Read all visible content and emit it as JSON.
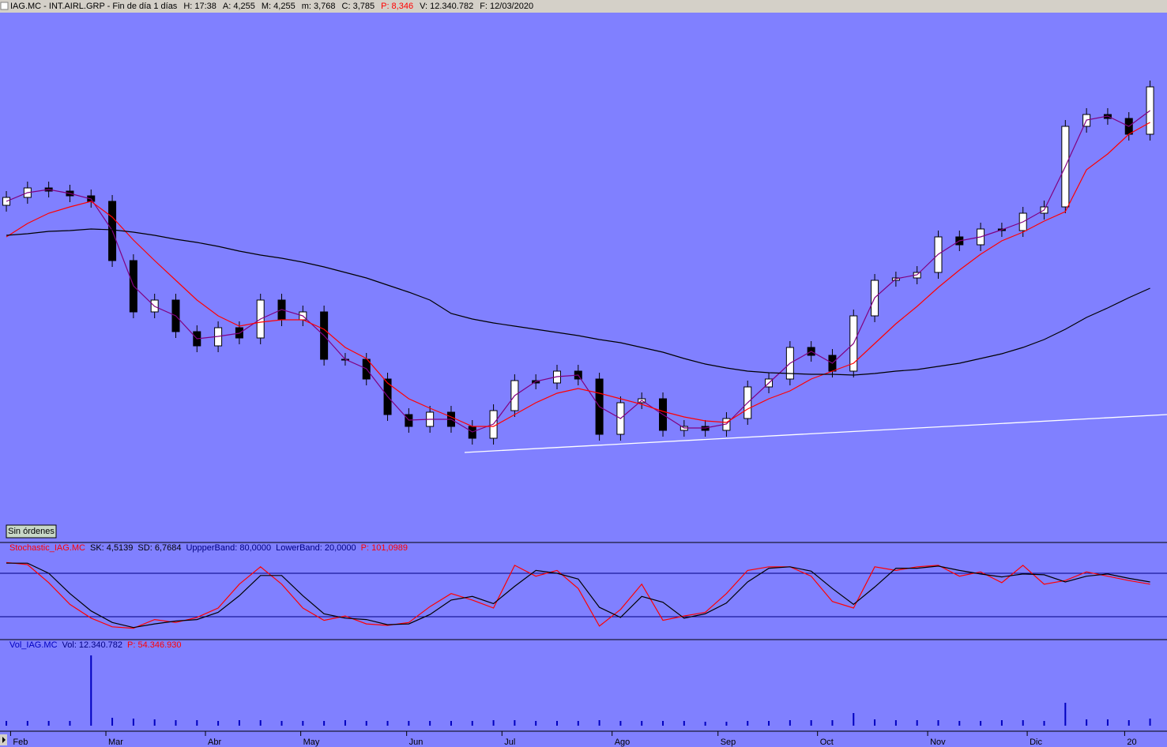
{
  "header": {
    "title": "IAG.MC - INT.AIRL.GRP - Fin de día 1 días",
    "fields": [
      {
        "text": "H: 17:38",
        "color": "#000000"
      },
      {
        "text": "A: 4,255",
        "color": "#000000"
      },
      {
        "text": "M: 4,255",
        "color": "#000000"
      },
      {
        "text": "m: 3,768",
        "color": "#000000"
      },
      {
        "text": "C: 3,785",
        "color": "#000000"
      },
      {
        "text": "P: 8,346",
        "color": "#ff0000"
      },
      {
        "text": "V: 12.340.782",
        "color": "#000000"
      },
      {
        "text": "F: 12/03/2020",
        "color": "#000000"
      }
    ]
  },
  "button": "Sin órdenes",
  "chart_data": [
    {
      "type": "candlestick",
      "xlim": [
        -0.3,
        54.8
      ],
      "ylim": [
        0,
        650
      ],
      "up_color": "#ffffff",
      "down_color": "#000000",
      "open": [
        400,
        410,
        422,
        418,
        412,
        405,
        330,
        265,
        280,
        240,
        222,
        245,
        232,
        280,
        255,
        265,
        205,
        205,
        180,
        135,
        120,
        138,
        120,
        105,
        140,
        178,
        175,
        190,
        180,
        110,
        150,
        155,
        115,
        120,
        115,
        130,
        170,
        180,
        220,
        210,
        190,
        260,
        305,
        308,
        315,
        360,
        350,
        370,
        368,
        390,
        398,
        500,
        515,
        510,
        490
      ],
      "high": [
        418,
        430,
        430,
        426,
        420,
        413,
        338,
        288,
        288,
        248,
        253,
        253,
        288,
        288,
        273,
        273,
        213,
        213,
        188,
        143,
        146,
        146,
        128,
        148,
        186,
        186,
        198,
        198,
        188,
        158,
        163,
        163,
        128,
        128,
        138,
        178,
        188,
        228,
        228,
        218,
        268,
        313,
        316,
        323,
        368,
        368,
        378,
        378,
        398,
        406,
        508,
        523,
        523,
        518,
        558
      ],
      "low": [
        392,
        402,
        410,
        404,
        397,
        322,
        257,
        257,
        232,
        214,
        214,
        224,
        224,
        247,
        247,
        197,
        197,
        172,
        127,
        112,
        112,
        112,
        97,
        97,
        132,
        167,
        167,
        172,
        102,
        102,
        142,
        107,
        107,
        107,
        107,
        122,
        162,
        172,
        202,
        182,
        182,
        252,
        297,
        300,
        307,
        342,
        342,
        360,
        360,
        382,
        390,
        492,
        502,
        482,
        482
      ],
      "close": [
        410,
        422,
        418,
        412,
        405,
        330,
        265,
        280,
        240,
        222,
        245,
        232,
        280,
        255,
        265,
        205,
        205,
        180,
        135,
        120,
        138,
        120,
        105,
        140,
        178,
        175,
        190,
        180,
        110,
        150,
        155,
        115,
        120,
        115,
        130,
        170,
        180,
        220,
        210,
        190,
        260,
        305,
        308,
        315,
        360,
        350,
        370,
        368,
        390,
        398,
        500,
        515,
        510,
        490,
        550
      ],
      "series": [
        {
          "color": "#800080",
          "values": [
            405,
            416,
            420,
            415,
            408,
            368,
            298,
            272,
            260,
            231,
            234,
            238,
            256,
            268,
            260,
            235,
            205,
            193,
            158,
            128,
            129,
            129,
            113,
            123,
            159,
            177,
            183,
            185,
            145,
            130,
            153,
            135,
            118,
            118,
            123,
            150,
            175,
            200,
            215,
            200,
            225,
            283,
            307,
            312,
            338,
            355,
            360,
            369,
            379,
            394,
            449,
            508,
            513,
            500,
            520
          ]
        },
        {
          "color": "#ff0000",
          "values": [
            360,
            377,
            390,
            398,
            405,
            385,
            356,
            330,
            305,
            280,
            260,
            247,
            252,
            255,
            255,
            243,
            220,
            206,
            175,
            155,
            143,
            132,
            120,
            120,
            135,
            150,
            162,
            168,
            162,
            155,
            148,
            139,
            132,
            127,
            125,
            142,
            155,
            165,
            180,
            190,
            200,
            225,
            250,
            272,
            296,
            318,
            338,
            355,
            366,
            380,
            392,
            445,
            465,
            490,
            505
          ]
        },
        {
          "color": "#000000",
          "values": [
            362,
            364,
            367,
            368,
            370,
            369,
            366,
            362,
            357,
            353,
            348,
            342,
            337,
            333,
            328,
            322,
            315,
            308,
            299,
            290,
            280,
            263,
            256,
            251,
            247,
            243,
            239,
            235,
            230,
            226,
            220,
            214,
            206,
            199,
            194,
            190,
            188,
            187,
            186,
            186,
            185,
            187,
            190,
            192,
            196,
            200,
            206,
            212,
            220,
            230,
            243,
            258,
            270,
            283,
            295
          ]
        }
      ]
    },
    {
      "type": "line",
      "xlim": [
        -0.3,
        54.8
      ],
      "ylim": [
        0,
        100
      ],
      "bands": [
        80,
        20
      ],
      "band_color": "#000080",
      "legend": [
        {
          "text": "Stochastic_IAG.MC",
          "color": "#ff0000"
        },
        {
          "text": "SK: 4,5139",
          "color": "#000000"
        },
        {
          "text": "SD: 6,7684",
          "color": "#000000"
        },
        {
          "text": "UppperBand: 80,0000",
          "color": "#000080"
        },
        {
          "text": "LowerBand: 20,0000",
          "color": "#000080"
        },
        {
          "text": "P: 101,0989",
          "color": "#ff0000"
        }
      ],
      "series": [
        {
          "color": "#ff0000",
          "values": [
            95,
            92,
            67,
            37,
            18,
            6,
            4,
            16,
            12,
            19,
            32,
            65,
            89,
            65,
            32,
            15,
            21,
            10,
            8,
            12,
            34,
            52,
            43,
            32,
            91,
            76,
            84,
            59,
            7,
            30,
            65,
            15,
            21,
            26,
            52,
            84,
            89,
            89,
            76,
            41,
            32,
            89,
            84,
            89,
            91,
            76,
            82,
            67,
            91,
            65,
            70,
            82,
            76,
            70,
            65
          ]
        },
        {
          "color": "#000000",
          "values": [
            94,
            94,
            80,
            52,
            28,
            12,
            5,
            10,
            14,
            16,
            26,
            49,
            77,
            77,
            49,
            24,
            18,
            16,
            9,
            10,
            23,
            43,
            48,
            38,
            62,
            84,
            80,
            72,
            33,
            19,
            48,
            40,
            18,
            24,
            39,
            68,
            87,
            89,
            83,
            59,
            37,
            61,
            87,
            87,
            90,
            84,
            79,
            75,
            79,
            78,
            68,
            76,
            79,
            73,
            68
          ]
        }
      ]
    },
    {
      "type": "bar",
      "xlim": [
        -0.3,
        54.8
      ],
      "ylim": [
        0,
        100
      ],
      "color": "#0000c0",
      "legend": [
        {
          "text": "Vol_IAG.MC",
          "color": "#0000c0"
        },
        {
          "text": "Vol: 12.340.782",
          "color": "#000080"
        },
        {
          "text": "P: 54.346.930",
          "color": "#ff0000"
        }
      ],
      "values": [
        6,
        6,
        6,
        6,
        89,
        10,
        9,
        8,
        7,
        7,
        6,
        7,
        7,
        6,
        6,
        6,
        7,
        6,
        6,
        6,
        6,
        6,
        6,
        7,
        7,
        6,
        6,
        6,
        7,
        6,
        6,
        6,
        6,
        5,
        5,
        6,
        6,
        7,
        7,
        7,
        16,
        8,
        7,
        7,
        7,
        6,
        6,
        7,
        7,
        6,
        29,
        8,
        8,
        7,
        9
      ],
      "xticks": [
        {
          "value": 0.2,
          "label": "Feb"
        },
        {
          "value": 4.7,
          "label": "Mar"
        },
        {
          "value": 9.4,
          "label": "Abr"
        },
        {
          "value": 13.9,
          "label": "May"
        },
        {
          "value": 18.9,
          "label": "Jun"
        },
        {
          "value": 23.4,
          "label": "Jul"
        },
        {
          "value": 28.6,
          "label": "Ago"
        },
        {
          "value": 33.6,
          "label": "Sep"
        },
        {
          "value": 38.3,
          "label": "Oct"
        },
        {
          "value": 43.5,
          "label": "Nov"
        },
        {
          "value": 48.2,
          "label": "Dic"
        },
        {
          "value": 52.8,
          "label": "20"
        }
      ]
    }
  ]
}
